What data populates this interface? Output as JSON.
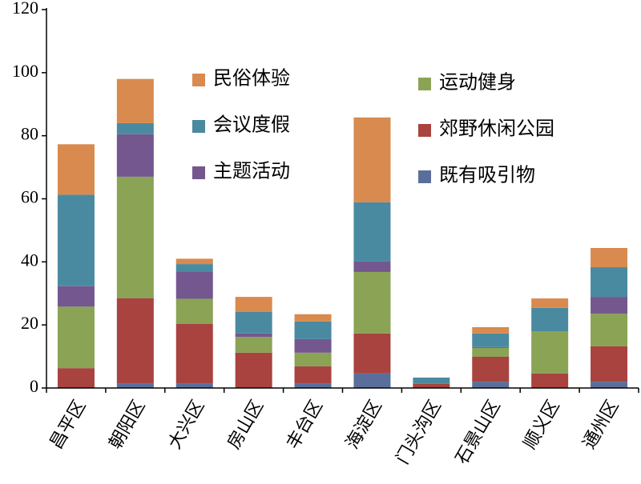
{
  "chart_data": {
    "type": "stacked_bar",
    "categories": [
      "昌平区",
      "朝阳区",
      "大兴区",
      "房山区",
      "丰台区",
      "海淀区",
      "门头沟区",
      "石景山区",
      "顺义区",
      "通州区"
    ],
    "series": [
      {
        "name": "既有吸引物",
        "color": "#5a6e9c",
        "values": [
          0,
          1.5,
          1.5,
          0,
          1.5,
          4.6,
          0,
          2,
          0,
          2
        ]
      },
      {
        "name": "郊野休闲公园",
        "color": "#a84340",
        "values": [
          6.3,
          27,
          18.8,
          11.2,
          5.4,
          12.7,
          1.3,
          7.9,
          4.6,
          11.2
        ]
      },
      {
        "name": "运动健身",
        "color": "#8aa355",
        "values": [
          19.5,
          38.5,
          8,
          5,
          4.3,
          19.5,
          0,
          2.8,
          13.4,
          10.4
        ]
      },
      {
        "name": "主题活动",
        "color": "#74578f",
        "values": [
          6.5,
          13.5,
          8.7,
          1.1,
          4.3,
          3.3,
          0,
          0.3,
          0,
          5.3
        ]
      },
      {
        "name": "会议度假",
        "color": "#4a8aa0",
        "values": [
          29,
          3.5,
          2.3,
          6.8,
          5.6,
          18.8,
          2,
          4.3,
          7.4,
          9.4
        ]
      },
      {
        "name": "民俗体验",
        "color": "#d98a4e",
        "values": [
          16,
          14,
          1.7,
          4.8,
          2.3,
          26.9,
          0,
          2,
          3,
          6.1
        ]
      }
    ],
    "ylim": [
      0,
      120
    ],
    "yticks": [
      0,
      20,
      40,
      60,
      80,
      100,
      120
    ],
    "grid": false
  }
}
